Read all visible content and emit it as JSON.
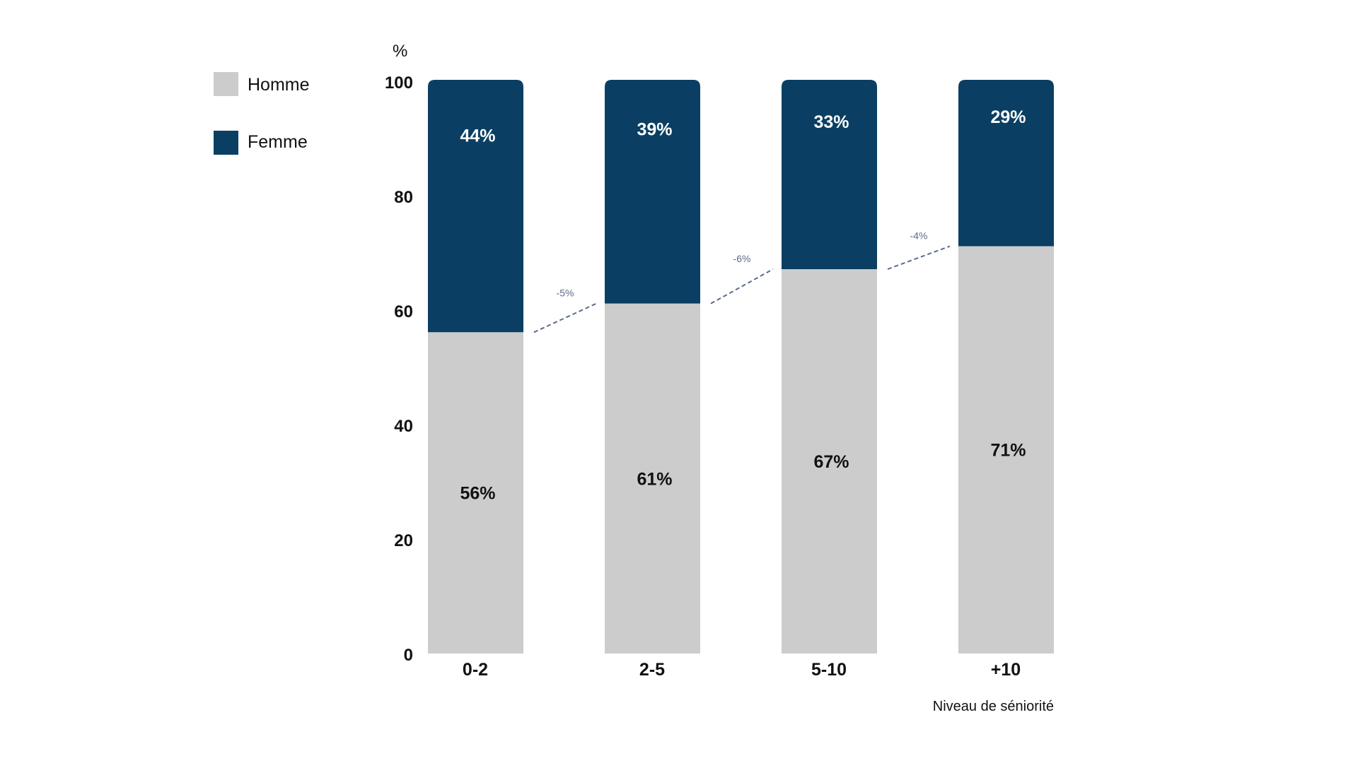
{
  "chart_data": {
    "type": "bar",
    "stacked": true,
    "categories": [
      "0-2",
      "2-5",
      "5-10",
      "+10"
    ],
    "series": [
      {
        "name": "Homme",
        "values": [
          56,
          61,
          67,
          71
        ],
        "labels": [
          "56%",
          "61%",
          "67%",
          "71%"
        ],
        "color": "#cccccc",
        "label_color": "#111111"
      },
      {
        "name": "Femme",
        "values": [
          44,
          39,
          33,
          29
        ],
        "labels": [
          "44%",
          "39%",
          "33%",
          "29%"
        ],
        "color": "#0a3f63",
        "label_color": "#ffffff"
      }
    ],
    "ylim": [
      0,
      100
    ],
    "yticks": [
      "0",
      "20",
      "40",
      "60",
      "80",
      "100"
    ],
    "yunit": "%",
    "xlabel": "Niveau de séniorité",
    "deltas": [
      "-5%",
      "-6%",
      "-4%"
    ],
    "delta_color": "#5b6b8c",
    "legend_position": "top-left",
    "grid": false
  }
}
